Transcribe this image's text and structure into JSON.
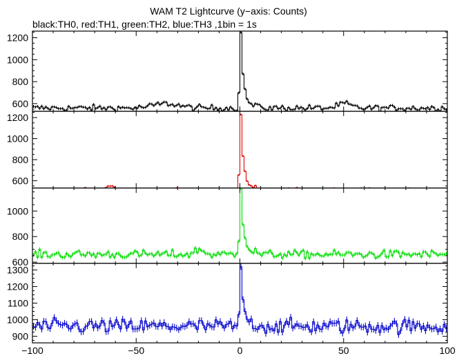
{
  "title": "WAM T2 Lightcurve (y−axis: Counts)",
  "subtitle": "black:TH0, red:TH1, green:TH2, blue:TH3 ,1bin = 1s",
  "colors": {
    "TH0": "#000000",
    "TH1": "#e00000",
    "TH2": "#00dd00",
    "TH3": "#0000cc"
  },
  "chart_data": {
    "type": "line",
    "x_range": [
      -100,
      100
    ],
    "x_ticks": [
      -100,
      -50,
      0,
      50,
      100
    ],
    "x_tick_labels": [
      "−100",
      "−50",
      "0",
      "50",
      "100"
    ],
    "grid": false,
    "series": [
      {
        "name": "TH0",
        "color": "#000000",
        "ylim": [
          530,
          1260
        ],
        "yticks": [
          600,
          800,
          1000,
          1200
        ],
        "baseline": 560,
        "noise": 14,
        "peak": 1250,
        "bumps": [
          [
            -36,
            40,
            6
          ],
          [
            50,
            40,
            3
          ]
        ]
      },
      {
        "name": "TH1",
        "color": "#e00000",
        "ylim": [
          530,
          1260
        ],
        "yticks": [
          600,
          800,
          1000,
          1200
        ],
        "baseline": 510,
        "noise": 10,
        "peak": 1230,
        "bumps": [
          [
            -63,
            50,
            1.5
          ]
        ]
      },
      {
        "name": "TH2",
        "color": "#00dd00",
        "ylim": [
          590,
          1180
        ],
        "yticks": [
          600,
          800,
          1000
        ],
        "baseline": 660,
        "noise": 16,
        "peak": 1180,
        "bumps": [
          [
            -20,
            40,
            2
          ]
        ]
      },
      {
        "name": "TH3",
        "color": "#0000cc",
        "ylim": [
          860,
          1340
        ],
        "yticks": [
          900,
          1000,
          1100,
          1200,
          1300
        ],
        "baseline": 960,
        "noise": 22,
        "peak": 1320,
        "bumps": []
      }
    ]
  }
}
